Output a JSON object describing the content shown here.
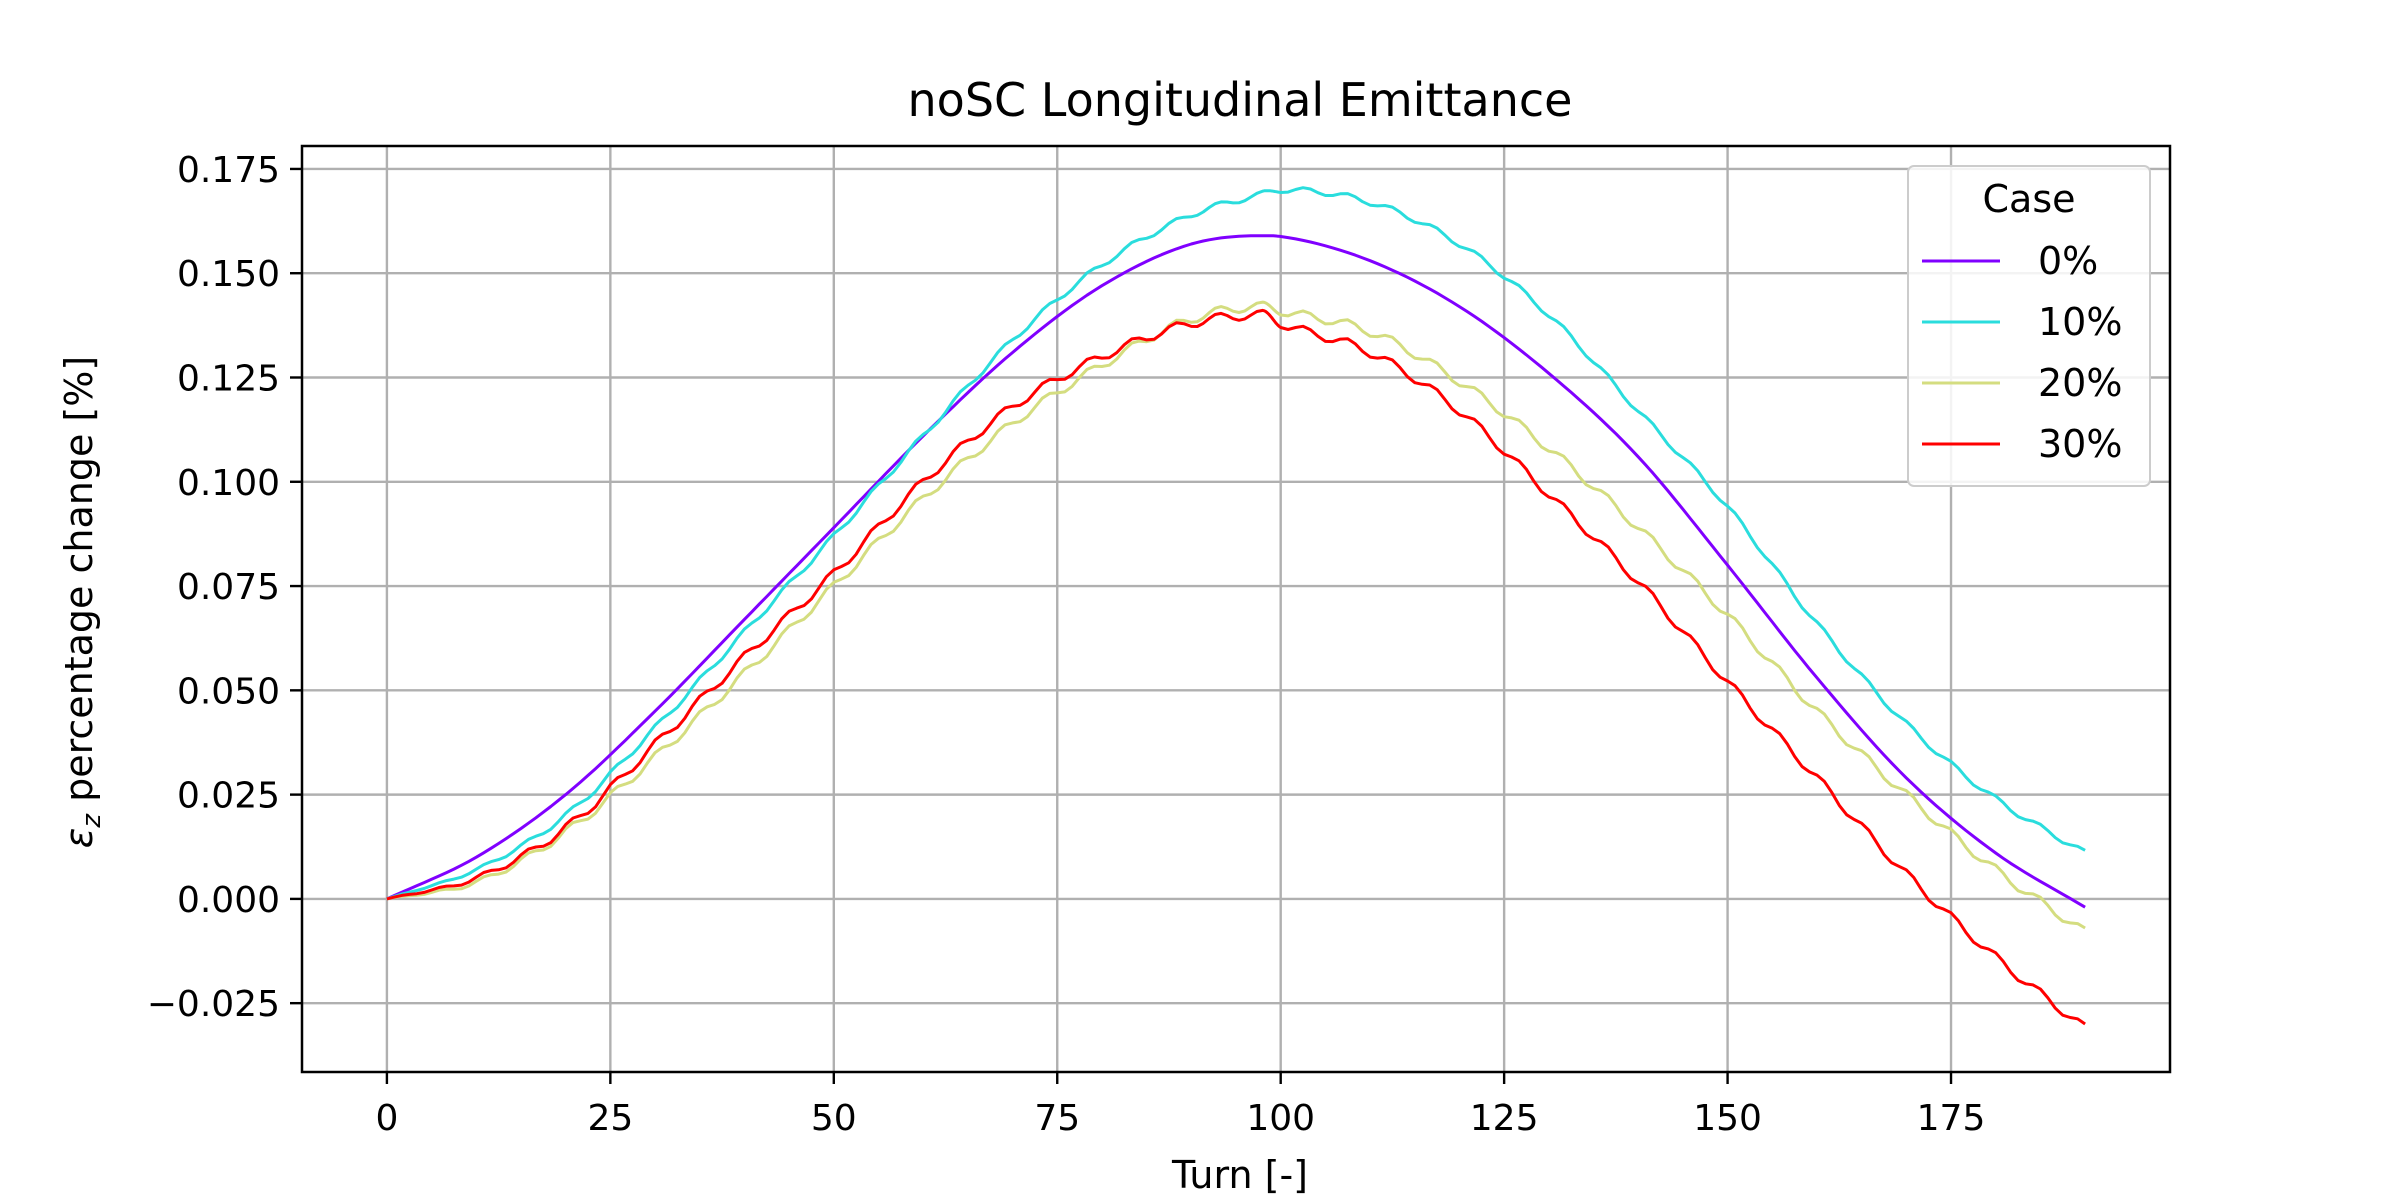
{
  "chart_data": {
    "type": "line",
    "title": "noSC Longitudinal Emittance",
    "xlabel": "Turn [-]",
    "ylabel_symbol": "ε",
    "ylabel_subscript": "z",
    "ylabel_rest": " percentage change [%]",
    "xlim": [
      -9.5,
      199.5
    ],
    "ylim": [
      -0.0415,
      0.1805
    ],
    "xticks": [
      0,
      25,
      50,
      75,
      100,
      125,
      150,
      175
    ],
    "xtick_labels": [
      "0",
      "25",
      "50",
      "75",
      "100",
      "125",
      "150",
      "175"
    ],
    "yticks": [
      -0.025,
      0,
      0.025,
      0.05,
      0.075,
      0.1,
      0.125,
      0.15,
      0.175
    ],
    "ytick_labels": [
      "−0.025",
      "0.000",
      "0.025",
      "0.050",
      "0.075",
      "0.100",
      "0.125",
      "0.150",
      "0.175"
    ],
    "grid": true,
    "legend": {
      "title": "Case",
      "placement": "top-right"
    },
    "x": [
      0,
      10,
      20,
      30,
      40,
      50,
      60,
      70,
      80,
      90,
      98,
      100,
      110,
      120,
      130,
      140,
      150,
      160,
      170,
      180,
      190
    ],
    "series": [
      {
        "name": "0%",
        "color": "#8000ff",
        "values": [
          0,
          0.01,
          0.025,
          0.045,
          0.067,
          0.089,
          0.111,
          0.131,
          0.147,
          0.157,
          0.159,
          0.1588,
          0.153,
          0.142,
          0.126,
          0.106,
          0.08,
          0.053,
          0.029,
          0.011,
          -0.002
        ]
      },
      {
        "name": "10%",
        "color": "#2adddd",
        "values": [
          0,
          0.007,
          0.02,
          0.041,
          0.064,
          0.087,
          0.111,
          0.134,
          0.152,
          0.164,
          0.169,
          0.17,
          0.167,
          0.157,
          0.14,
          0.117,
          0.094,
          0.066,
          0.042,
          0.024,
          0.011
        ]
      },
      {
        "name": "20%",
        "color": "#d4dd80",
        "values": [
          0,
          0.004,
          0.016,
          0.034,
          0.054,
          0.075,
          0.096,
          0.114,
          0.128,
          0.139,
          0.142,
          0.141,
          0.136,
          0.124,
          0.108,
          0.089,
          0.068,
          0.045,
          0.025,
          0.007,
          -0.008
        ]
      },
      {
        "name": "30%",
        "color": "#ff0000",
        "values": [
          0,
          0.005,
          0.017,
          0.037,
          0.058,
          0.078,
          0.1,
          0.118,
          0.13,
          0.138,
          0.14,
          0.138,
          0.131,
          0.117,
          0.097,
          0.076,
          0.052,
          0.029,
          0.006,
          -0.014,
          -0.031
        ]
      }
    ]
  }
}
